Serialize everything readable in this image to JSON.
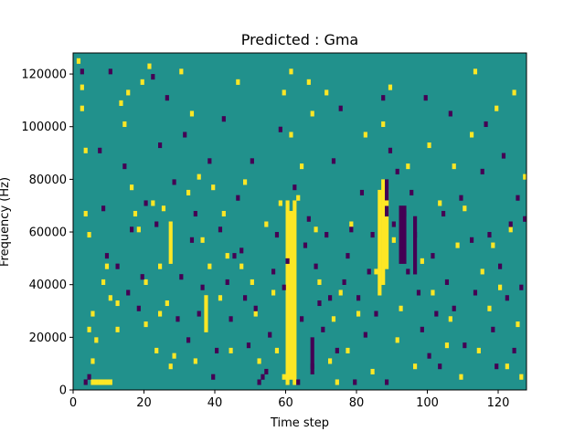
{
  "chart_data": {
    "type": "heatmap",
    "title": "Predicted : Gma",
    "xlabel": "Time step",
    "ylabel": "Frequency (Hz)",
    "xlim": [
      0,
      128
    ],
    "ylim": [
      0,
      128000
    ],
    "xticks": [
      0,
      20,
      40,
      60,
      80,
      100,
      120
    ],
    "xtick_labels": [
      "0",
      "20",
      "40",
      "60",
      "80",
      "100",
      "120"
    ],
    "yticks": [
      0,
      20000,
      40000,
      60000,
      80000,
      100000,
      120000
    ],
    "ytick_labels": [
      "0",
      "20000",
      "40000",
      "60000",
      "80000",
      "100000",
      "120000"
    ],
    "colors": {
      "background": "#21918c",
      "high": "#fde725",
      "low": "#440154"
    },
    "cell_height_hz": 2000,
    "yellow_cells": [
      [
        1,
        124000
      ],
      [
        2,
        114000
      ],
      [
        2,
        106000
      ],
      [
        3,
        90000
      ],
      [
        3,
        66000
      ],
      [
        4,
        58000
      ],
      [
        5,
        28000
      ],
      [
        4,
        22000
      ],
      [
        5,
        2000
      ],
      [
        6,
        2000
      ],
      [
        7,
        2000
      ],
      [
        8,
        2000
      ],
      [
        9,
        2000
      ],
      [
        10,
        2000
      ],
      [
        5,
        10000
      ],
      [
        6,
        18000
      ],
      [
        8,
        40000
      ],
      [
        9,
        46000
      ],
      [
        10,
        34000
      ],
      [
        12,
        32000
      ],
      [
        12,
        22000
      ],
      [
        13,
        108000
      ],
      [
        14,
        100000
      ],
      [
        15,
        112000
      ],
      [
        16,
        76000
      ],
      [
        17,
        66000
      ],
      [
        18,
        60000
      ],
      [
        19,
        116000
      ],
      [
        20,
        40000
      ],
      [
        20,
        24000
      ],
      [
        21,
        122000
      ],
      [
        22,
        70000
      ],
      [
        23,
        14000
      ],
      [
        24,
        46000
      ],
      [
        24,
        28000
      ],
      [
        25,
        68000
      ],
      [
        26,
        32000
      ],
      [
        27,
        8000
      ],
      [
        28,
        12000
      ],
      [
        30,
        120000
      ],
      [
        32,
        74000
      ],
      [
        33,
        104000
      ],
      [
        34,
        10000
      ],
      [
        35,
        80000
      ],
      [
        36,
        56000
      ],
      [
        37,
        22000
      ],
      [
        38,
        46000
      ],
      [
        39,
        76000
      ],
      [
        41,
        34000
      ],
      [
        42,
        66000
      ],
      [
        43,
        50000
      ],
      [
        44,
        14000
      ],
      [
        46,
        116000
      ],
      [
        47,
        46000
      ],
      [
        48,
        78000
      ],
      [
        50,
        40000
      ],
      [
        51,
        28000
      ],
      [
        52,
        10000
      ],
      [
        54,
        62000
      ],
      [
        56,
        36000
      ],
      [
        57,
        14000
      ],
      [
        58,
        70000
      ],
      [
        59,
        4000
      ],
      [
        59,
        112000
      ],
      [
        61,
        120000
      ],
      [
        61,
        96000
      ],
      [
        63,
        72000
      ],
      [
        64,
        84000
      ],
      [
        66,
        116000
      ],
      [
        67,
        104000
      ],
      [
        68,
        60000
      ],
      [
        69,
        40000
      ],
      [
        71,
        112000
      ],
      [
        72,
        10000
      ],
      [
        73,
        26000
      ],
      [
        74,
        2000
      ],
      [
        75,
        36000
      ],
      [
        77,
        14000
      ],
      [
        78,
        62000
      ],
      [
        80,
        28000
      ],
      [
        82,
        96000
      ],
      [
        84,
        6000
      ],
      [
        85,
        44000
      ],
      [
        87,
        100000
      ],
      [
        88,
        70000
      ],
      [
        89,
        114000
      ],
      [
        90,
        56000
      ],
      [
        91,
        18000
      ],
      [
        92,
        30000
      ],
      [
        94,
        84000
      ],
      [
        96,
        8000
      ],
      [
        98,
        48000
      ],
      [
        100,
        92000
      ],
      [
        101,
        36000
      ],
      [
        103,
        70000
      ],
      [
        105,
        16000
      ],
      [
        106,
        26000
      ],
      [
        107,
        84000
      ],
      [
        108,
        54000
      ],
      [
        109,
        4000
      ],
      [
        110,
        68000
      ],
      [
        112,
        96000
      ],
      [
        113,
        120000
      ],
      [
        114,
        14000
      ],
      [
        115,
        44000
      ],
      [
        117,
        30000
      ],
      [
        118,
        54000
      ],
      [
        119,
        106000
      ],
      [
        120,
        38000
      ],
      [
        122,
        8000
      ],
      [
        123,
        60000
      ],
      [
        124,
        112000
      ],
      [
        125,
        24000
      ],
      [
        126,
        4000
      ],
      [
        127,
        80000
      ]
    ],
    "yellow_columns": [
      {
        "x": 60,
        "y": [
          2000,
          72000
        ]
      },
      {
        "x": 61,
        "y": [
          4000,
          68000
        ]
      },
      {
        "x": 62,
        "y": [
          2000,
          72000
        ]
      },
      {
        "x": 86,
        "y": [
          36000,
          76000
        ]
      },
      {
        "x": 87,
        "y": [
          40000,
          80000
        ]
      },
      {
        "x": 88,
        "y": [
          46000,
          76000
        ]
      },
      {
        "x": 27,
        "y": [
          48000,
          64000
        ]
      },
      {
        "x": 37,
        "y": [
          24000,
          36000
        ]
      }
    ],
    "purple_cells": [
      [
        2,
        120000
      ],
      [
        3,
        2000
      ],
      [
        4,
        4000
      ],
      [
        7,
        90000
      ],
      [
        8,
        68000
      ],
      [
        9,
        50000
      ],
      [
        10,
        120000
      ],
      [
        14,
        84000
      ],
      [
        16,
        60000
      ],
      [
        18,
        30000
      ],
      [
        20,
        70000
      ],
      [
        22,
        118000
      ],
      [
        24,
        92000
      ],
      [
        26,
        110000
      ],
      [
        28,
        78000
      ],
      [
        30,
        42000
      ],
      [
        32,
        18000
      ],
      [
        33,
        56000
      ],
      [
        34,
        66000
      ],
      [
        35,
        28000
      ],
      [
        36,
        38000
      ],
      [
        38,
        86000
      ],
      [
        40,
        14000
      ],
      [
        41,
        60000
      ],
      [
        42,
        102000
      ],
      [
        44,
        26000
      ],
      [
        45,
        50000
      ],
      [
        46,
        72000
      ],
      [
        48,
        34000
      ],
      [
        50,
        86000
      ],
      [
        52,
        2000
      ],
      [
        53,
        4000
      ],
      [
        54,
        6000
      ],
      [
        55,
        20000
      ],
      [
        56,
        44000
      ],
      [
        58,
        98000
      ],
      [
        60,
        48000
      ],
      [
        62,
        76000
      ],
      [
        63,
        2000
      ],
      [
        64,
        26000
      ],
      [
        65,
        54000
      ],
      [
        66,
        64000
      ],
      [
        67,
        8000
      ],
      [
        68,
        46000
      ],
      [
        70,
        22000
      ],
      [
        71,
        58000
      ],
      [
        72,
        34000
      ],
      [
        73,
        86000
      ],
      [
        74,
        14000
      ],
      [
        76,
        40000
      ],
      [
        77,
        50000
      ],
      [
        78,
        60000
      ],
      [
        79,
        2000
      ],
      [
        80,
        34000
      ],
      [
        81,
        74000
      ],
      [
        82,
        20000
      ],
      [
        83,
        44000
      ],
      [
        84,
        58000
      ],
      [
        85,
        28000
      ],
      [
        87,
        110000
      ],
      [
        88,
        2000
      ],
      [
        89,
        90000
      ],
      [
        90,
        62000
      ],
      [
        91,
        82000
      ],
      [
        92,
        52000
      ],
      [
        93,
        66000
      ],
      [
        94,
        44000
      ],
      [
        95,
        74000
      ],
      [
        96,
        58000
      ],
      [
        97,
        36000
      ],
      [
        98,
        22000
      ],
      [
        99,
        110000
      ],
      [
        100,
        12000
      ],
      [
        101,
        50000
      ],
      [
        102,
        28000
      ],
      [
        103,
        8000
      ],
      [
        104,
        66000
      ],
      [
        105,
        40000
      ],
      [
        106,
        104000
      ],
      [
        107,
        30000
      ],
      [
        109,
        72000
      ],
      [
        110,
        16000
      ],
      [
        112,
        56000
      ],
      [
        113,
        36000
      ],
      [
        115,
        82000
      ],
      [
        116,
        100000
      ],
      [
        117,
        58000
      ],
      [
        118,
        22000
      ],
      [
        119,
        8000
      ],
      [
        120,
        46000
      ],
      [
        121,
        88000
      ],
      [
        122,
        34000
      ],
      [
        123,
        62000
      ],
      [
        124,
        14000
      ],
      [
        125,
        72000
      ],
      [
        126,
        38000
      ],
      [
        127,
        64000
      ],
      [
        12,
        46000
      ],
      [
        15,
        36000
      ],
      [
        19,
        42000
      ],
      [
        23,
        62000
      ],
      [
        29,
        26000
      ],
      [
        31,
        96000
      ],
      [
        39,
        4000
      ],
      [
        43,
        40000
      ],
      [
        47,
        52000
      ],
      [
        49,
        16000
      ],
      [
        51,
        30000
      ],
      [
        57,
        58000
      ],
      [
        59,
        38000
      ],
      [
        69,
        32000
      ],
      [
        75,
        106000
      ]
    ],
    "purple_columns": [
      {
        "x": 67,
        "y": [
          6000,
          20000
        ]
      },
      {
        "x": 88,
        "y": [
          66000,
          80000
        ]
      },
      {
        "x": 92,
        "y": [
          48000,
          70000
        ]
      },
      {
        "x": 93,
        "y": [
          48000,
          70000
        ]
      },
      {
        "x": 96,
        "y": [
          44000,
          66000
        ]
      }
    ]
  }
}
